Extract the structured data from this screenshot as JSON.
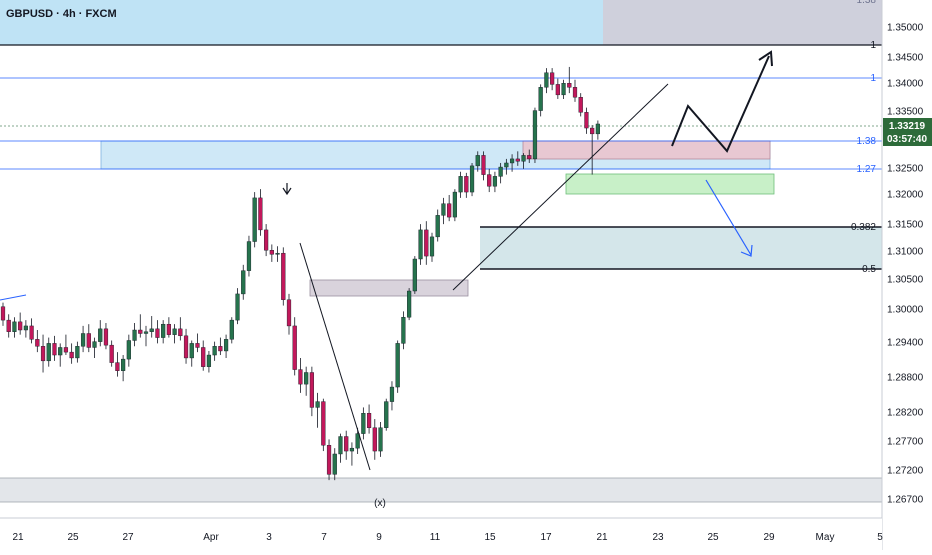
{
  "header": {
    "symbol_title": "GBPUSD · 4h · FXCM"
  },
  "colors": {
    "bull": "#26734d",
    "bear": "#c2185b",
    "wick": "#131722",
    "top_zone": "#bfe3f5",
    "blue_zone": "#cfe8f7",
    "pink_zone": "#e8c8d2",
    "green_zone": "#c8f0c8",
    "grey_zone": "#d9d3dc",
    "teal_zone": "#d4e6ea",
    "fib_line": "#2962ff",
    "price_badge": "#2d6b3a",
    "arrow_up": "#131722",
    "arrow_down": "#2962ff"
  },
  "price_axis": {
    "ticks": [
      "1.35000",
      "1.34500",
      "1.34000",
      "1.33500",
      "1.32500",
      "1.32000",
      "1.31500",
      "1.31000",
      "1.30500",
      "1.30000",
      "1.29400",
      "1.28800",
      "1.28200",
      "1.27700",
      "1.27200",
      "1.26700"
    ],
    "current_price": "1.33219",
    "countdown": "03:57:40"
  },
  "time_axis": {
    "labels": [
      "21",
      "25",
      "27",
      "Apr",
      "3",
      "7",
      "9",
      "11",
      "15",
      "17",
      "21",
      "23",
      "25",
      "29",
      "May",
      "5"
    ]
  },
  "fib_labels": {
    "level_1": "1",
    "level_138": "1.38",
    "level_127": "1.27",
    "level_0382": "0.382",
    "level_05": "0.5",
    "level_top_cut": "1.38"
  },
  "annotations": {
    "wave_x": "(x)"
  },
  "chart_data": {
    "type": "candlestick",
    "title": "GBPUSD · 4h · FXCM",
    "xlabel": "",
    "ylabel": "",
    "ylim": [
      1.2645,
      1.3535
    ],
    "last_price": 1.33219,
    "time_labels": [
      "21",
      "25",
      "27",
      "Apr",
      "3",
      "7",
      "9",
      "11",
      "15",
      "17",
      "21",
      "23",
      "25",
      "29",
      "May",
      "5"
    ],
    "series": [
      {
        "values": [
          [
            1.3008,
            1.3015,
            1.2975,
            1.2985
          ],
          [
            1.2985,
            1.2995,
            1.2955,
            1.2965
          ],
          [
            1.2965,
            1.299,
            1.2955,
            1.2982
          ],
          [
            1.2982,
            1.2998,
            1.296,
            1.2968
          ],
          [
            1.2968,
            1.2985,
            1.2955,
            1.2975
          ],
          [
            1.2975,
            1.2988,
            1.2945,
            1.2952
          ],
          [
            1.2952,
            1.2968,
            1.293,
            1.294
          ],
          [
            1.294,
            1.296,
            1.2895,
            1.2915
          ],
          [
            1.2915,
            1.2955,
            1.2905,
            1.2945
          ],
          [
            1.2945,
            1.2958,
            1.2915,
            1.2925
          ],
          [
            1.2925,
            1.2945,
            1.2905,
            1.2938
          ],
          [
            1.2938,
            1.296,
            1.2925,
            1.293
          ],
          [
            1.293,
            1.2945,
            1.291,
            1.292
          ],
          [
            1.292,
            1.2948,
            1.2912,
            1.294
          ],
          [
            1.294,
            1.2975,
            1.293,
            1.2962
          ],
          [
            1.2962,
            1.2978,
            1.293,
            1.2938
          ],
          [
            1.2938,
            1.2955,
            1.292,
            1.2948
          ],
          [
            1.2948,
            1.2985,
            1.294,
            1.297
          ],
          [
            1.297,
            1.298,
            1.2935,
            1.2942
          ],
          [
            1.2942,
            1.295,
            1.2905,
            1.2912
          ],
          [
            1.2912,
            1.293,
            1.2888,
            1.2898
          ],
          [
            1.2898,
            1.2925,
            1.288,
            1.2918
          ],
          [
            1.2918,
            1.296,
            1.2905,
            1.295
          ],
          [
            1.295,
            1.298,
            1.294,
            1.2968
          ],
          [
            1.2968,
            1.2995,
            1.2955,
            1.2962
          ],
          [
            1.2962,
            1.2975,
            1.294,
            1.2965
          ],
          [
            1.2965,
            1.2992,
            1.2955,
            1.297
          ],
          [
            1.297,
            1.2985,
            1.2945,
            1.2955
          ],
          [
            1.2955,
            1.2985,
            1.2945,
            1.2978
          ],
          [
            1.2978,
            1.299,
            1.2955,
            1.296
          ],
          [
            1.296,
            1.2978,
            1.2945,
            1.297
          ],
          [
            1.297,
            1.299,
            1.295,
            1.2958
          ],
          [
            1.2958,
            1.297,
            1.291,
            1.292
          ],
          [
            1.292,
            1.295,
            1.2905,
            1.2945
          ],
          [
            1.2945,
            1.2962,
            1.293,
            1.2938
          ],
          [
            1.2938,
            1.295,
            1.2898,
            1.2905
          ],
          [
            1.2905,
            1.2932,
            1.2895,
            1.2925
          ],
          [
            1.2925,
            1.2948,
            1.2915,
            1.294
          ],
          [
            1.294,
            1.2955,
            1.2925,
            1.2932
          ],
          [
            1.2932,
            1.296,
            1.292,
            1.2952
          ],
          [
            1.2952,
            1.299,
            1.2945,
            1.2985
          ],
          [
            1.2985,
            1.304,
            1.2978,
            1.303
          ],
          [
            1.303,
            1.308,
            1.302,
            1.307
          ],
          [
            1.307,
            1.313,
            1.306,
            1.312
          ],
          [
            1.312,
            1.3205,
            1.311,
            1.3195
          ],
          [
            1.3195,
            1.321,
            1.313,
            1.314
          ],
          [
            1.314,
            1.315,
            1.3095,
            1.3105
          ],
          [
            1.3105,
            1.3115,
            1.3085,
            1.3098
          ],
          [
            1.3098,
            1.3112,
            1.3085,
            1.31
          ],
          [
            1.31,
            1.311,
            1.301,
            1.302
          ],
          [
            1.302,
            1.303,
            1.296,
            1.2975
          ],
          [
            1.2975,
            1.299,
            1.289,
            1.29
          ],
          [
            1.29,
            1.292,
            1.286,
            1.2875
          ],
          [
            1.2875,
            1.2905,
            1.2855,
            1.2895
          ],
          [
            1.2895,
            1.2905,
            1.282,
            1.2835
          ],
          [
            1.2835,
            1.286,
            1.28,
            1.2845
          ],
          [
            1.2845,
            1.285,
            1.276,
            1.277
          ],
          [
            1.277,
            1.278,
            1.271,
            1.272
          ],
          [
            1.272,
            1.2765,
            1.271,
            1.2755
          ],
          [
            1.2755,
            1.279,
            1.274,
            1.2785
          ],
          [
            1.2785,
            1.2795,
            1.2745,
            1.276
          ],
          [
            1.276,
            1.2775,
            1.2735,
            1.2765
          ],
          [
            1.2765,
            1.28,
            1.2755,
            1.279
          ],
          [
            1.279,
            1.2835,
            1.278,
            1.2825
          ],
          [
            1.2825,
            1.284,
            1.279,
            1.28
          ],
          [
            1.28,
            1.2815,
            1.2745,
            1.276
          ],
          [
            1.276,
            1.281,
            1.275,
            1.28
          ],
          [
            1.28,
            1.285,
            1.2795,
            1.2845
          ],
          [
            1.2845,
            1.288,
            1.283,
            1.287
          ],
          [
            1.287,
            1.295,
            1.286,
            1.2945
          ],
          [
            1.2945,
            1.3,
            1.2935,
            1.299
          ],
          [
            1.299,
            1.304,
            1.2985,
            1.3035
          ],
          [
            1.3035,
            1.3095,
            1.303,
            1.309
          ],
          [
            1.309,
            1.315,
            1.308,
            1.314
          ],
          [
            1.314,
            1.3155,
            1.308,
            1.3095
          ],
          [
            1.3095,
            1.3135,
            1.3085,
            1.3128
          ],
          [
            1.3128,
            1.3175,
            1.312,
            1.3165
          ],
          [
            1.3165,
            1.3195,
            1.315,
            1.3185
          ],
          [
            1.3185,
            1.32,
            1.3155,
            1.3162
          ],
          [
            1.3162,
            1.321,
            1.3155,
            1.3205
          ],
          [
            1.3205,
            1.324,
            1.3195,
            1.3232
          ],
          [
            1.3232,
            1.3238,
            1.3195,
            1.3205
          ],
          [
            1.3205,
            1.3255,
            1.3198,
            1.325
          ],
          [
            1.325,
            1.3275,
            1.324,
            1.3268
          ],
          [
            1.3268,
            1.3275,
            1.3225,
            1.3235
          ],
          [
            1.3235,
            1.3245,
            1.3205,
            1.3215
          ],
          [
            1.3215,
            1.324,
            1.3205,
            1.3232
          ],
          [
            1.3232,
            1.3255,
            1.322,
            1.3248
          ],
          [
            1.3248,
            1.3262,
            1.3235,
            1.3255
          ],
          [
            1.3255,
            1.327,
            1.324,
            1.3262
          ],
          [
            1.3262,
            1.3275,
            1.325,
            1.3258
          ],
          [
            1.3258,
            1.3272,
            1.3245,
            1.3268
          ],
          [
            1.3268,
            1.3278,
            1.3255,
            1.3262
          ],
          [
            1.3262,
            1.335,
            1.3255,
            1.3345
          ],
          [
            1.3345,
            1.339,
            1.3335,
            1.3385
          ],
          [
            1.3385,
            1.3418,
            1.3375,
            1.341
          ],
          [
            1.341,
            1.3418,
            1.338,
            1.339
          ],
          [
            1.339,
            1.34,
            1.3365,
            1.3372
          ],
          [
            1.3372,
            1.3398,
            1.3365,
            1.3392
          ],
          [
            1.3392,
            1.342,
            1.3375,
            1.3385
          ],
          [
            1.3385,
            1.3398,
            1.336,
            1.3368
          ],
          [
            1.3368,
            1.3375,
            1.3335,
            1.3342
          ],
          [
            1.3342,
            1.335,
            1.3305,
            1.3315
          ],
          [
            1.3315,
            1.332,
            1.3235,
            1.3305
          ],
          [
            1.3305,
            1.3328,
            1.3295,
            1.3322
          ]
        ]
      }
    ]
  }
}
